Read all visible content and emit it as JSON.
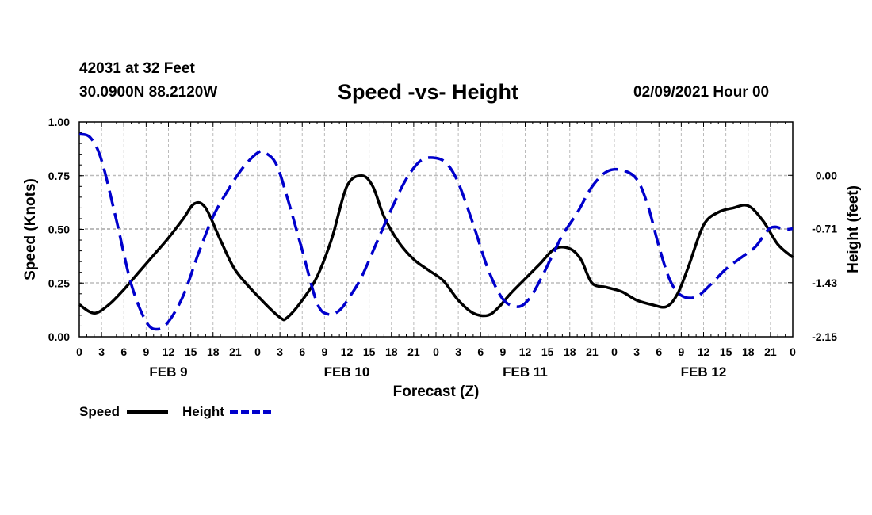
{
  "header": {
    "station": "42031 at 32 Feet",
    "coords": "30.0900N 88.2120W",
    "title": "Speed -vs- Height",
    "timestamp": "02/09/2021 Hour 00"
  },
  "colors": {
    "speed": "#000000",
    "height": "#0000cc",
    "grid": "#bbbbbb"
  },
  "chart_data": {
    "type": "line",
    "title": "Speed -vs- Height",
    "xlabel": "Forecast (Z)",
    "ylabel": "Speed (Knots)",
    "ylabel_right": "Height (feet)",
    "xlim": [
      0,
      96
    ],
    "ylim": [
      0,
      1.0
    ],
    "ylim_right": [
      -2.15,
      0.71
    ],
    "x_ticks": [
      0,
      3,
      6,
      9,
      12,
      15,
      18,
      21,
      24,
      27,
      30,
      33,
      36,
      39,
      42,
      45,
      48,
      51,
      54,
      57,
      60,
      63,
      66,
      69,
      72,
      75,
      78,
      81,
      84,
      87,
      90,
      93,
      96
    ],
    "x_tick_labels": [
      "0",
      "3",
      "6",
      "9",
      "12",
      "15",
      "18",
      "21",
      "0",
      "3",
      "6",
      "9",
      "12",
      "15",
      "18",
      "21",
      "0",
      "3",
      "6",
      "9",
      "12",
      "15",
      "18",
      "21",
      "0",
      "3",
      "6",
      "9",
      "12",
      "15",
      "18",
      "21",
      "0"
    ],
    "date_labels": [
      {
        "x": 12,
        "label": "FEB 9"
      },
      {
        "x": 36,
        "label": "FEB 10"
      },
      {
        "x": 60,
        "label": "FEB 11"
      },
      {
        "x": 84,
        "label": "FEB 12"
      }
    ],
    "y_ticks": [
      0.0,
      0.25,
      0.5,
      0.75,
      1.0
    ],
    "y_tick_labels": [
      "0.00",
      "0.25",
      "0.50",
      "0.75",
      "1.00"
    ],
    "y_right_ticks": [
      -2.15,
      -1.43,
      -0.71,
      0.0
    ],
    "y_right_tick_labels": [
      "-2.15",
      "-1.43",
      "-0.71",
      "0.00"
    ],
    "grid": true,
    "legend_position": "bottom-left",
    "series": [
      {
        "name": "Speed",
        "axis": "left",
        "style": "solid",
        "x": [
          0,
          2,
          4,
          6,
          8,
          10,
          12,
          14,
          15.5,
          17,
          19,
          21,
          24,
          27,
          28,
          30,
          32,
          34,
          36,
          38,
          39.5,
          41,
          43,
          45,
          47,
          49,
          51,
          53,
          55,
          56.5,
          58,
          60,
          62,
          64,
          66,
          67.5,
          69,
          71,
          73,
          75,
          77,
          79,
          80.5,
          82,
          84,
          86,
          88,
          90,
          92,
          94,
          96
        ],
        "values": [
          0.15,
          0.11,
          0.15,
          0.22,
          0.3,
          0.38,
          0.46,
          0.55,
          0.62,
          0.6,
          0.45,
          0.31,
          0.19,
          0.09,
          0.09,
          0.17,
          0.28,
          0.46,
          0.7,
          0.75,
          0.7,
          0.56,
          0.44,
          0.36,
          0.31,
          0.26,
          0.17,
          0.11,
          0.1,
          0.14,
          0.2,
          0.27,
          0.34,
          0.41,
          0.41,
          0.36,
          0.25,
          0.23,
          0.21,
          0.17,
          0.15,
          0.14,
          0.2,
          0.33,
          0.52,
          0.58,
          0.6,
          0.61,
          0.54,
          0.43,
          0.37
        ]
      },
      {
        "name": "Height",
        "axis": "right",
        "style": "dashed",
        "x": [
          0,
          1.5,
          3,
          5,
          7,
          9,
          10.5,
          12,
          14,
          16,
          18,
          20,
          22,
          24,
          25,
          26.5,
          28,
          30,
          32,
          33.5,
          35,
          36.5,
          38,
          40,
          42,
          44,
          46,
          48,
          49.5,
          51,
          53,
          55,
          57,
          59,
          60.5,
          62,
          63.5,
          65,
          67,
          69,
          71,
          73,
          75,
          76.5,
          78,
          79.5,
          81,
          83,
          85,
          87,
          89,
          91,
          93,
          95,
          96
        ],
        "values": [
          0.55,
          0.5,
          0.2,
          -0.6,
          -1.45,
          -1.95,
          -2.05,
          -1.95,
          -1.6,
          -1.05,
          -0.55,
          -0.2,
          0.1,
          0.3,
          0.3,
          0.15,
          -0.3,
          -1.0,
          -1.7,
          -1.85,
          -1.8,
          -1.6,
          -1.35,
          -0.9,
          -0.45,
          -0.05,
          0.2,
          0.23,
          0.15,
          -0.1,
          -0.65,
          -1.25,
          -1.65,
          -1.75,
          -1.65,
          -1.4,
          -1.1,
          -0.8,
          -0.5,
          -0.15,
          0.05,
          0.07,
          -0.05,
          -0.4,
          -0.95,
          -1.4,
          -1.6,
          -1.62,
          -1.45,
          -1.25,
          -1.1,
          -0.95,
          -0.7,
          -0.72,
          -0.71
        ]
      }
    ]
  }
}
